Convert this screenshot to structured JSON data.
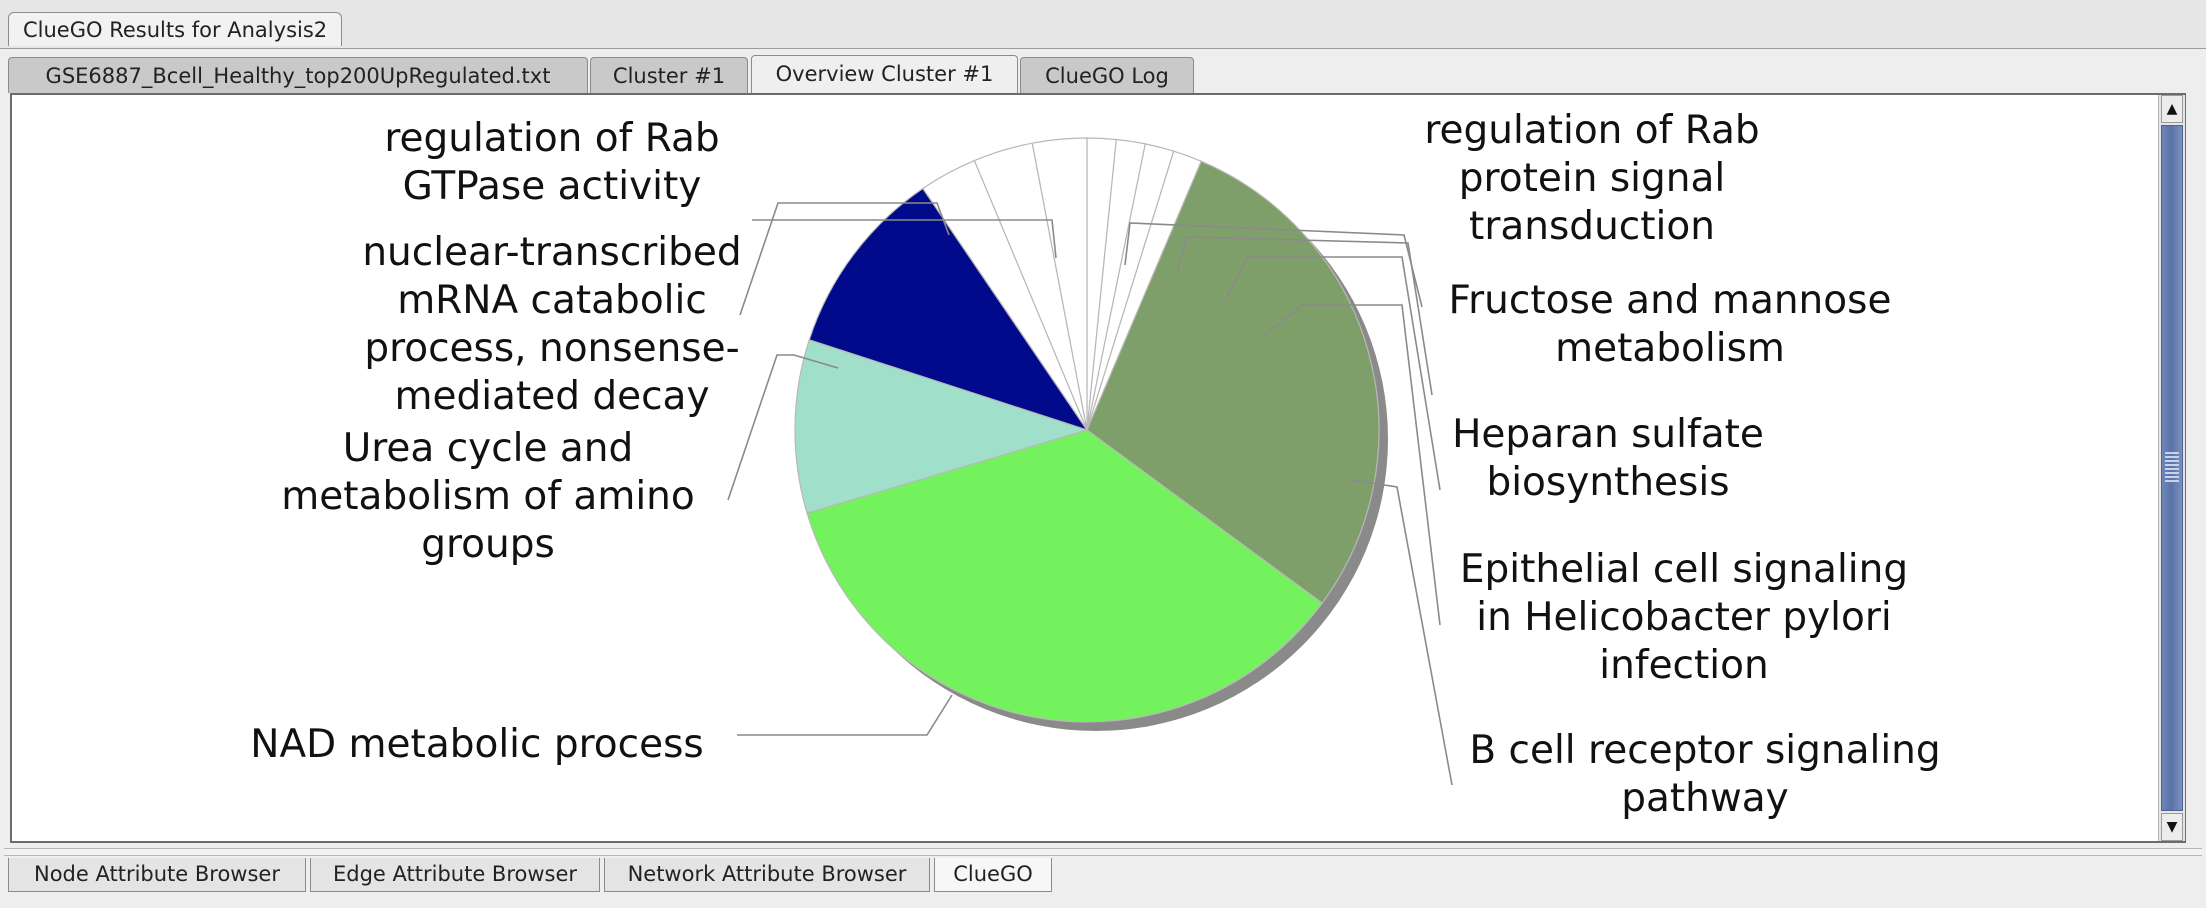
{
  "window": {
    "result_tab": "ClueGO Results for Analysis2"
  },
  "tabs": [
    {
      "label": "GSE6887_Bcell_Healthy_top200UpRegulated.txt",
      "active": false
    },
    {
      "label": "Cluster #1",
      "active": false
    },
    {
      "label": "Overview Cluster #1",
      "active": true
    },
    {
      "label": "ClueGO Log",
      "active": false
    }
  ],
  "bottom_tabs": [
    {
      "label": "Node Attribute Browser",
      "active": false
    },
    {
      "label": "Edge Attribute Browser",
      "active": false
    },
    {
      "label": "Network Attribute Browser",
      "active": false
    },
    {
      "label": "ClueGO",
      "active": true
    }
  ],
  "scrollbar": {
    "up_arrow": "▲",
    "down_arrow": "▼"
  },
  "chart_data": {
    "type": "pie",
    "title": "",
    "slices": [
      {
        "label": "regulation of Rab protein signal transduction",
        "value": 1.6,
        "color": "#ffffff"
      },
      {
        "label": "Fructose and mannose metabolism",
        "value": 1.6,
        "color": "#ffffff"
      },
      {
        "label": "Heparan sulfate biosynthesis",
        "value": 1.6,
        "color": "#ffffff"
      },
      {
        "label": "Epithelial cell signaling in Helicobacter pylori infection",
        "value": 1.6,
        "color": "#ffffff"
      },
      {
        "label": "B cell receptor signaling pathway",
        "value": 28.7,
        "color": "#7f9f6a"
      },
      {
        "label": "NAD metabolic process",
        "value": 35.3,
        "color": "#74f25e"
      },
      {
        "label": "Urea cycle and metabolism of amino groups",
        "value": 9.6,
        "color": "#a0dfca"
      },
      {
        "label": "nuclear-transcribed mRNA catabolic process, nonsense-mediated decay",
        "value": 10.5,
        "color": "#000a8a"
      },
      {
        "label": "regulation of Rab GTPase activity",
        "value": 3.2,
        "color": "#ffffff"
      },
      {
        "label": "",
        "value": 3.3,
        "color": "#ffffff"
      },
      {
        "label": "",
        "value": 3.0,
        "color": "#ffffff"
      }
    ],
    "labels_left": [
      {
        "lines": [
          "regulation of Rab",
          "GTPase activity"
        ]
      },
      {
        "lines": [
          "nuclear-transcribed",
          "mRNA catabolic",
          "process, nonsense-",
          "mediated decay"
        ]
      },
      {
        "lines": [
          "Urea cycle and",
          "metabolism of amino",
          "groups"
        ]
      },
      {
        "lines": [
          "NAD metabolic process"
        ]
      }
    ],
    "labels_right": [
      {
        "lines": [
          "regulation of Rab",
          "protein signal",
          "transduction"
        ]
      },
      {
        "lines": [
          "Fructose and mannose",
          "metabolism"
        ]
      },
      {
        "lines": [
          "Heparan sulfate",
          "biosynthesis"
        ]
      },
      {
        "lines": [
          "Epithelial cell signaling",
          "in Helicobacter pylori",
          "infection"
        ]
      },
      {
        "lines": [
          "B cell receptor signaling",
          "pathway"
        ]
      }
    ]
  }
}
